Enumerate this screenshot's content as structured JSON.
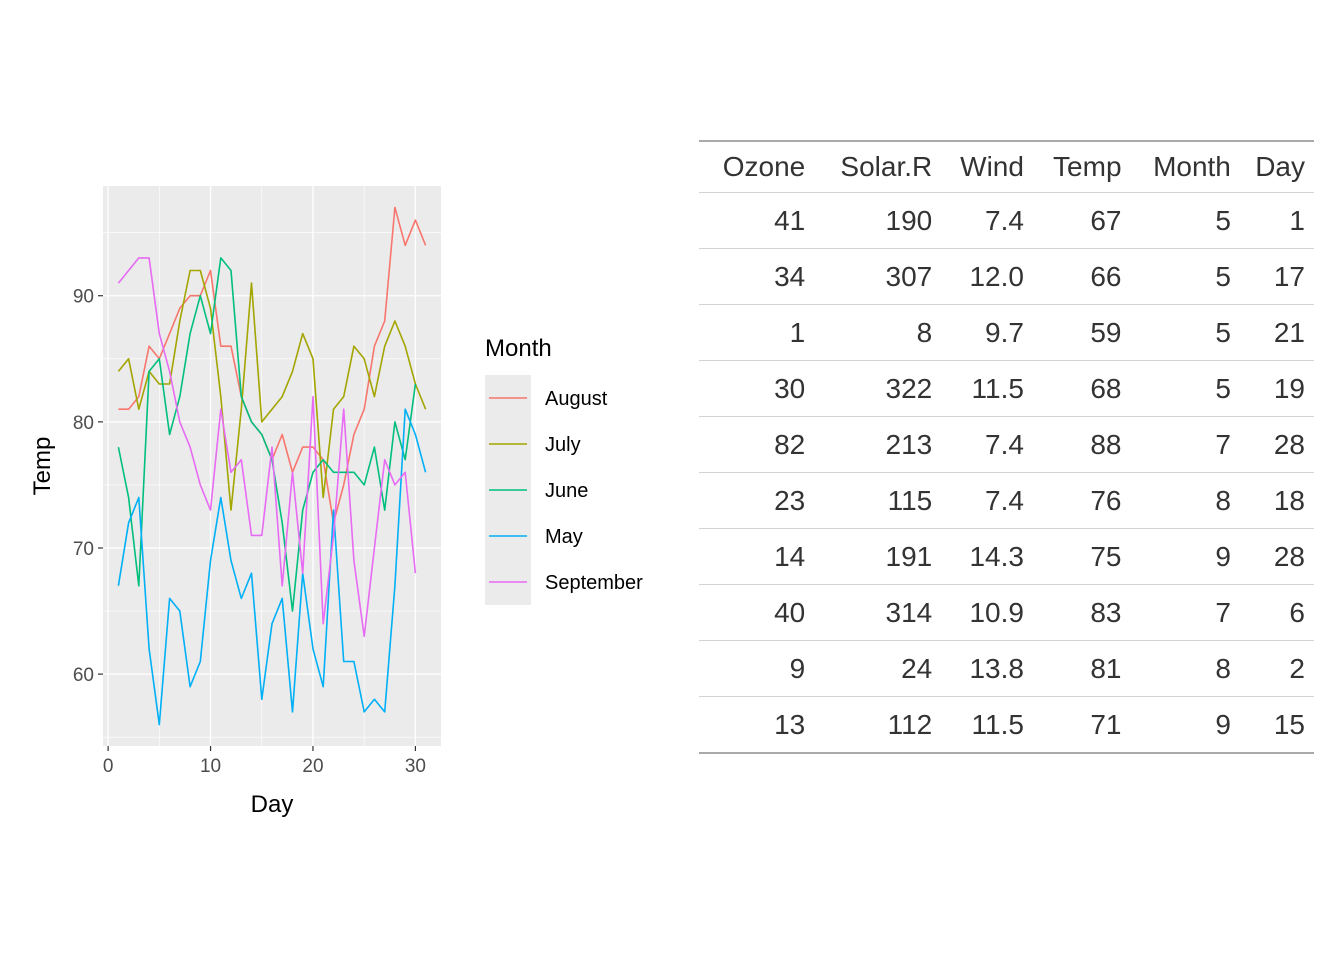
{
  "chart_data": {
    "type": "line",
    "xlabel": "Day",
    "ylabel": "Temp",
    "xlim": [
      -0.5,
      32.5
    ],
    "ylim": [
      54.3,
      98.7
    ],
    "xticks": [
      0,
      10,
      20,
      30
    ],
    "yticks": [
      60,
      70,
      80,
      90
    ],
    "grid": true,
    "legend": {
      "title": "Month",
      "position": "right"
    },
    "series": [
      {
        "name": "August",
        "color": "#F8766D",
        "x": [
          1,
          2,
          3,
          4,
          5,
          6,
          7,
          8,
          9,
          10,
          11,
          12,
          13,
          14,
          15,
          16,
          17,
          18,
          19,
          20,
          21,
          22,
          23,
          24,
          25,
          26,
          27,
          28,
          29,
          30,
          31
        ],
        "y": [
          81,
          81,
          82,
          86,
          85,
          87,
          89,
          90,
          90,
          92,
          86,
          86,
          82,
          80,
          79,
          77,
          79,
          76,
          78,
          78,
          77,
          72,
          75,
          79,
          81,
          86,
          88,
          97,
          94,
          96,
          94
        ]
      },
      {
        "name": "July",
        "color": "#A3A500",
        "x": [
          1,
          2,
          3,
          4,
          5,
          6,
          7,
          8,
          9,
          10,
          11,
          12,
          13,
          14,
          15,
          16,
          17,
          18,
          19,
          20,
          21,
          22,
          23,
          24,
          25,
          26,
          27,
          28,
          29,
          30,
          31
        ],
        "y": [
          84,
          85,
          81,
          84,
          83,
          83,
          88,
          92,
          92,
          89,
          82,
          73,
          81,
          91,
          80,
          81,
          82,
          84,
          87,
          85,
          74,
          81,
          82,
          86,
          85,
          82,
          86,
          88,
          86,
          83,
          81
        ]
      },
      {
        "name": "June",
        "color": "#00BF7D",
        "x": [
          1,
          2,
          3,
          4,
          5,
          6,
          7,
          8,
          9,
          10,
          11,
          12,
          13,
          14,
          15,
          16,
          17,
          18,
          19,
          20,
          21,
          22,
          23,
          24,
          25,
          26,
          27,
          28,
          29,
          30
        ],
        "y": [
          78,
          74,
          67,
          84,
          85,
          79,
          82,
          87,
          90,
          87,
          93,
          92,
          82,
          80,
          79,
          77,
          72,
          65,
          73,
          76,
          77,
          76,
          76,
          76,
          75,
          78,
          73,
          80,
          77,
          83
        ]
      },
      {
        "name": "May",
        "color": "#00B0F6",
        "x": [
          1,
          2,
          3,
          4,
          5,
          6,
          7,
          8,
          9,
          10,
          11,
          12,
          13,
          14,
          15,
          16,
          17,
          18,
          19,
          20,
          21,
          22,
          23,
          24,
          25,
          26,
          27,
          28,
          29,
          30,
          31
        ],
        "y": [
          67,
          72,
          74,
          62,
          56,
          66,
          65,
          59,
          61,
          69,
          74,
          69,
          66,
          68,
          58,
          64,
          66,
          57,
          68,
          62,
          59,
          73,
          61,
          61,
          57,
          58,
          57,
          67,
          81,
          79,
          76
        ]
      },
      {
        "name": "September",
        "color": "#E76BF3",
        "x": [
          1,
          2,
          3,
          4,
          5,
          6,
          7,
          8,
          9,
          10,
          11,
          12,
          13,
          14,
          15,
          16,
          17,
          18,
          19,
          20,
          21,
          22,
          23,
          24,
          25,
          26,
          27,
          28,
          29,
          30
        ],
        "y": [
          91,
          92,
          93,
          93,
          87,
          84,
          80,
          78,
          75,
          73,
          81,
          76,
          77,
          71,
          71,
          78,
          67,
          76,
          68,
          82,
          64,
          71,
          81,
          69,
          63,
          70,
          77,
          75,
          76,
          68
        ]
      }
    ]
  },
  "table": {
    "columns": [
      "Ozone",
      "Solar.R",
      "Wind",
      "Temp",
      "Month",
      "Day"
    ],
    "rows": [
      [
        "41",
        "190",
        "7.4",
        "67",
        "5",
        "1"
      ],
      [
        "34",
        "307",
        "12.0",
        "66",
        "5",
        "17"
      ],
      [
        "1",
        "8",
        "9.7",
        "59",
        "5",
        "21"
      ],
      [
        "30",
        "322",
        "11.5",
        "68",
        "5",
        "19"
      ],
      [
        "82",
        "213",
        "7.4",
        "88",
        "7",
        "28"
      ],
      [
        "23",
        "115",
        "7.4",
        "76",
        "8",
        "18"
      ],
      [
        "14",
        "191",
        "14.3",
        "75",
        "9",
        "28"
      ],
      [
        "40",
        "314",
        "10.9",
        "83",
        "7",
        "6"
      ],
      [
        "9",
        "24",
        "13.8",
        "81",
        "8",
        "2"
      ],
      [
        "13",
        "112",
        "11.5",
        "71",
        "9",
        "15"
      ]
    ]
  }
}
